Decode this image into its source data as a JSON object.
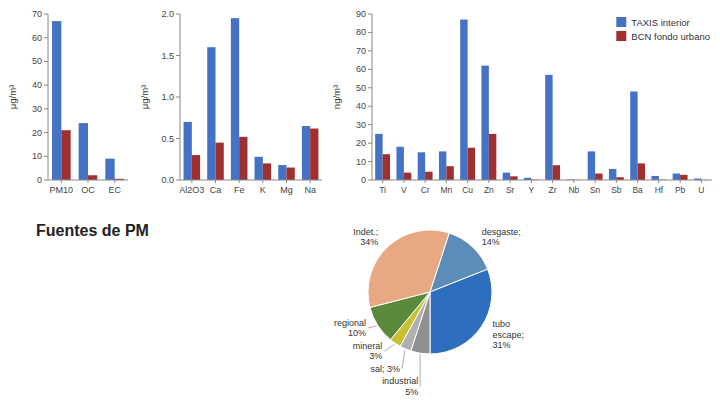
{
  "chart_data": [
    {
      "type": "bar",
      "categories": [
        "PM10",
        "OC",
        "EC"
      ],
      "series": [
        {
          "color": "#4472C4",
          "values": [
            67,
            24,
            9
          ]
        },
        {
          "color": "#A03030",
          "values": [
            21,
            2,
            0.5
          ]
        }
      ],
      "y_label": "μg/m³",
      "ylim": [
        0,
        70
      ],
      "yticks": [
        0,
        10,
        20,
        30,
        40,
        50,
        60,
        70
      ],
      "grid": false
    },
    {
      "type": "bar",
      "categories": [
        "Al2O3",
        "Ca",
        "Fe",
        "K",
        "Mg",
        "Na"
      ],
      "series": [
        {
          "color": "#4472C4",
          "values": [
            0.7,
            1.6,
            1.95,
            0.28,
            0.18,
            0.65
          ]
        },
        {
          "color": "#A03030",
          "values": [
            0.3,
            0.45,
            0.52,
            0.2,
            0.15,
            0.62
          ]
        }
      ],
      "y_label": "μg/m³",
      "ylim": [
        0,
        2.0
      ],
      "yticks": [
        {
          "value": 0,
          "label": "0.0"
        },
        0.5,
        {
          "value": 1,
          "label": "1.0"
        },
        1.5,
        {
          "value": 2,
          "label": "2.0"
        }
      ],
      "grid": false
    },
    {
      "type": "bar",
      "categories": [
        "Ti",
        "V",
        "Cr",
        "Mn",
        "Cu",
        "Zn",
        "Sr",
        "Y",
        "Zr",
        "Nb",
        "Sn",
        "Sb",
        "Ba",
        "Hf",
        "Pb",
        "U"
      ],
      "series": [
        {
          "name": "TAXIS interior",
          "color": "#4472C4",
          "values": [
            25,
            18,
            15,
            15.5,
            87,
            62,
            4,
            1.2,
            57,
            0.3,
            15.5,
            6,
            48,
            2.2,
            3.5,
            0.8
          ]
        },
        {
          "name": "BCN fondo urbano",
          "color": "#A03030",
          "values": [
            14,
            4,
            4.5,
            7.5,
            17.5,
            25,
            2,
            0.2,
            8,
            0.1,
            3.5,
            1.5,
            9,
            0.2,
            2.8,
            0.1
          ]
        }
      ],
      "y_label": "ng/m³",
      "ylim": [
        0,
        90
      ],
      "yticks": [
        0,
        10,
        20,
        30,
        40,
        50,
        60,
        70,
        80,
        90
      ],
      "grid": false,
      "legend": "upper right"
    },
    {
      "type": "pie",
      "title": "Fuentes de PM",
      "categories": [
        "desgaste;\n14%",
        "tubo\nescape;\n31%",
        "industrial\n5%",
        "sal; 3%",
        "mineral\n3%",
        "regional\n10%",
        "Indet.;\n34%"
      ],
      "values": [
        14,
        31,
        5,
        3,
        3,
        10,
        34
      ],
      "colors": [
        "#5B8DB8",
        "#2E6EBE",
        "#909090",
        "#B0B0B0",
        "#C8C030",
        "#5A8A3C",
        "#E8A882"
      ]
    }
  ]
}
